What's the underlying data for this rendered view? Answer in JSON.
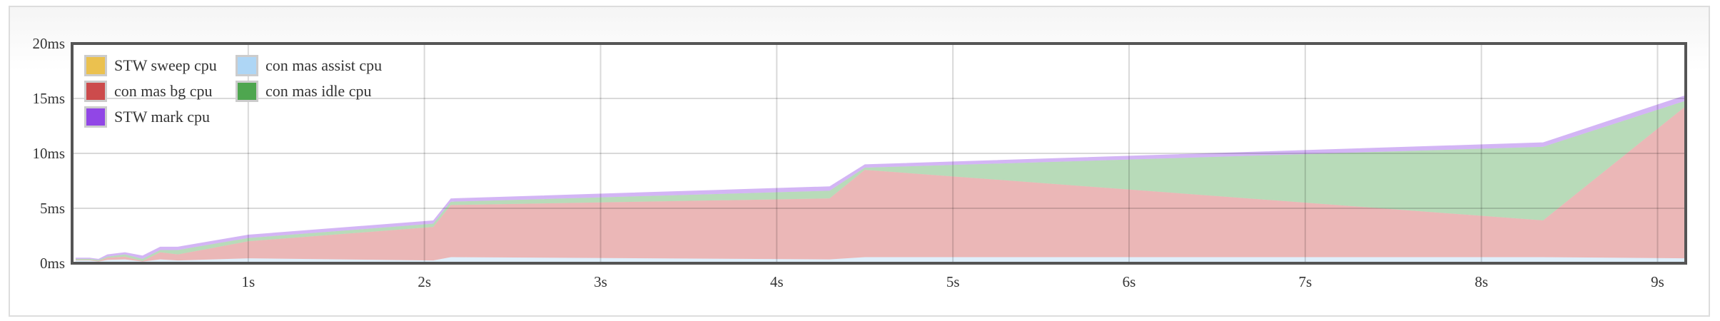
{
  "chart_data": {
    "type": "area",
    "stacked": true,
    "x": [
      0.02,
      0.1,
      0.15,
      0.2,
      0.3,
      0.4,
      0.5,
      0.6,
      1.0,
      2.05,
      2.15,
      4.3,
      4.5,
      8.35,
      9.16
    ],
    "xlim": [
      0,
      9.16
    ],
    "ylim": [
      0,
      20
    ],
    "x_ticks": [
      {
        "v": 1,
        "label": "1s"
      },
      {
        "v": 2,
        "label": "2s"
      },
      {
        "v": 3,
        "label": "3s"
      },
      {
        "v": 4,
        "label": "4s"
      },
      {
        "v": 5,
        "label": "5s"
      },
      {
        "v": 6,
        "label": "6s"
      },
      {
        "v": 7,
        "label": "7s"
      },
      {
        "v": 8,
        "label": "8s"
      },
      {
        "v": 9,
        "label": "9s"
      }
    ],
    "y_ticks": [
      {
        "v": 0,
        "label": "0ms"
      },
      {
        "v": 5,
        "label": "5ms"
      },
      {
        "v": 10,
        "label": "10ms"
      },
      {
        "v": 15,
        "label": "15ms"
      },
      {
        "v": 20,
        "label": "20ms"
      }
    ],
    "grid": true,
    "legend_position": "top-left",
    "series": [
      {
        "name": "STW sweep cpu",
        "color": "#ebc14f",
        "values": [
          0.05,
          0.05,
          0.05,
          0.05,
          0.05,
          0.05,
          0.05,
          0.05,
          0.05,
          0.05,
          0.05,
          0.05,
          0.05,
          0.05,
          0.05
        ]
      },
      {
        "name": "con mas assist cpu",
        "color": "#aed6f5",
        "values": [
          0.2,
          0.2,
          0.1,
          0.25,
          0.3,
          0.1,
          0.3,
          0.2,
          0.4,
          0.2,
          0.5,
          0.3,
          0.5,
          0.5,
          0.4
        ]
      },
      {
        "name": "con mas bg cpu",
        "color": "#cc4b4c",
        "values": [
          0.05,
          0.05,
          0.05,
          0.2,
          0.25,
          0.05,
          0.65,
          0.55,
          1.55,
          3.05,
          4.75,
          5.55,
          7.95,
          3.35,
          13.85
        ]
      },
      {
        "name": "con mas idle cpu",
        "color": "#4ea64f",
        "values": [
          0.1,
          0.1,
          0.1,
          0.1,
          0.2,
          0.2,
          0.2,
          0.4,
          0.3,
          0.3,
          0.3,
          0.7,
          0.2,
          6.7,
          0.5
        ]
      },
      {
        "name": "STW mark cpu",
        "color": "#9146e6",
        "values": [
          0.1,
          0.1,
          0.1,
          0.2,
          0.2,
          0.3,
          0.3,
          0.3,
          0.3,
          0.3,
          0.3,
          0.4,
          0.3,
          0.4,
          0.5
        ]
      }
    ],
    "legend_order": [
      0,
      1,
      2,
      3,
      4
    ]
  }
}
